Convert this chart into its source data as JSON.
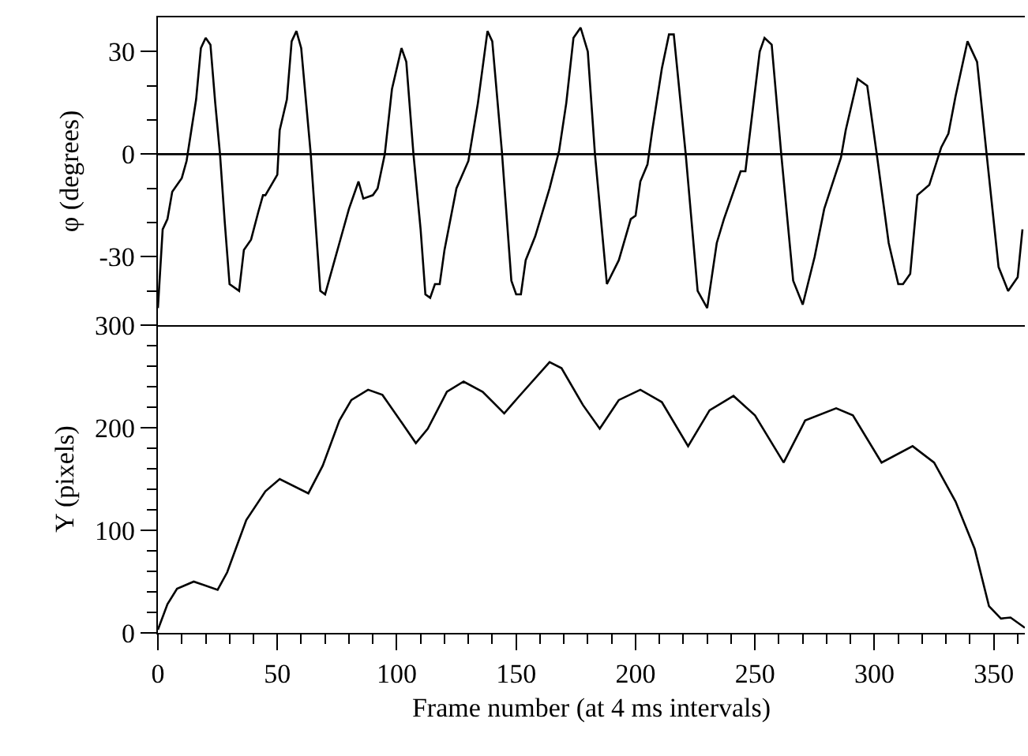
{
  "chart_data": [
    {
      "type": "line",
      "ylabel": "φ (degrees)",
      "tick_labels": "y",
      "grid": false,
      "marker": "none",
      "line_style": "solid",
      "xlim": [
        0,
        363
      ],
      "ylim": [
        -50,
        40
      ],
      "yticks": [
        {
          "value": -40,
          "label": null
        },
        -30,
        {
          "value": -20,
          "label": null
        },
        {
          "value": -10,
          "label": null
        },
        0,
        {
          "value": 10,
          "label": null
        },
        {
          "value": 20,
          "label": null
        },
        30
      ],
      "ref_lines": [
        {
          "axis": "y",
          "value": 0,
          "label": null,
          "color": "#000000"
        }
      ],
      "series": [
        {
          "color": "#000000",
          "x": [
            0,
            2,
            4,
            6,
            10,
            12,
            14,
            16,
            18,
            20,
            22,
            24,
            26,
            28,
            30,
            34,
            36,
            39,
            42,
            44,
            45,
            50,
            51,
            54,
            56,
            58,
            60,
            64,
            67,
            68,
            70,
            74,
            76,
            80,
            81,
            84,
            86,
            90,
            92,
            95,
            98,
            102,
            104,
            107,
            110,
            112,
            114,
            116,
            118,
            120,
            125,
            130,
            134,
            138,
            140,
            144,
            148,
            150,
            152,
            154,
            158,
            164,
            168,
            171,
            174,
            177,
            180,
            183,
            188,
            193,
            198,
            200,
            202,
            205,
            207,
            211,
            214,
            216,
            221,
            226,
            230,
            234,
            237,
            244,
            246,
            247,
            252,
            254,
            257,
            261,
            266,
            270,
            275,
            279,
            286,
            288,
            293,
            297,
            301,
            306,
            310,
            312,
            315,
            318,
            323,
            328,
            331,
            334,
            339,
            343,
            347,
            352,
            356,
            360,
            362
          ],
          "values": [
            -45,
            -22,
            -19,
            -11,
            -7,
            -2,
            7,
            16,
            31,
            34,
            32,
            15,
            0,
            -20,
            -38,
            -40,
            -28,
            -25,
            -17,
            -12,
            -12,
            -6,
            7,
            16,
            33,
            36,
            31,
            0,
            -30,
            -40,
            -41,
            -31,
            -26,
            -16,
            -14,
            -8,
            -13,
            -12,
            -10,
            0,
            19,
            31,
            27,
            0,
            -22,
            -41,
            -42,
            -38,
            -38,
            -28,
            -10,
            -2,
            15,
            36,
            33,
            1,
            -37,
            -41,
            -41,
            -31,
            -24,
            -10,
            1,
            15,
            34,
            37,
            30,
            0,
            -38,
            -31,
            -19,
            -18,
            -8,
            -3,
            7,
            25,
            35,
            35,
            0,
            -40,
            -45,
            -26,
            -19,
            -5,
            -5,
            1,
            30,
            34,
            32,
            0,
            -37,
            -44,
            -30,
            -16,
            -1,
            7,
            22,
            20,
            0,
            -26,
            -38,
            -38,
            -35,
            -12,
            -9,
            2,
            6,
            17,
            33,
            27,
            0,
            -33,
            -40,
            -36,
            -22
          ]
        }
      ]
    },
    {
      "type": "line",
      "xlabel": "Frame number (at 4 ms intervals)",
      "ylabel": "Y (pixels)",
      "grid": false,
      "marker": "none",
      "line_style": "solid",
      "xlim": [
        0,
        363
      ],
      "xticks": [
        0,
        {
          "value": 10,
          "label": null
        },
        {
          "value": 20,
          "label": null
        },
        {
          "value": 30,
          "label": null
        },
        {
          "value": 40,
          "label": null
        },
        50,
        {
          "value": 60,
          "label": null
        },
        {
          "value": 70,
          "label": null
        },
        {
          "value": 80,
          "label": null
        },
        {
          "value": 90,
          "label": null
        },
        100,
        {
          "value": 110,
          "label": null
        },
        {
          "value": 120,
          "label": null
        },
        {
          "value": 130,
          "label": null
        },
        {
          "value": 140,
          "label": null
        },
        150,
        {
          "value": 160,
          "label": null
        },
        {
          "value": 170,
          "label": null
        },
        {
          "value": 180,
          "label": null
        },
        {
          "value": 190,
          "label": null
        },
        200,
        {
          "value": 210,
          "label": null
        },
        {
          "value": 220,
          "label": null
        },
        {
          "value": 230,
          "label": null
        },
        {
          "value": 240,
          "label": null
        },
        250,
        {
          "value": 260,
          "label": null
        },
        {
          "value": 270,
          "label": null
        },
        {
          "value": 280,
          "label": null
        },
        {
          "value": 290,
          "label": null
        },
        300,
        {
          "value": 310,
          "label": null
        },
        {
          "value": 320,
          "label": null
        },
        {
          "value": 330,
          "label": null
        },
        {
          "value": 340,
          "label": null
        },
        350,
        {
          "value": 360,
          "label": null
        }
      ],
      "ylim": [
        0,
        300
      ],
      "yticks": [
        0,
        {
          "value": 20,
          "label": null
        },
        {
          "value": 40,
          "label": null
        },
        {
          "value": 60,
          "label": null
        },
        {
          "value": 80,
          "label": null
        },
        100,
        {
          "value": 120,
          "label": null
        },
        {
          "value": 140,
          "label": null
        },
        {
          "value": 160,
          "label": null
        },
        {
          "value": 180,
          "label": null
        },
        200,
        {
          "value": 220,
          "label": null
        },
        {
          "value": 240,
          "label": null
        },
        {
          "value": 260,
          "label": null
        },
        {
          "value": 280,
          "label": null
        },
        300
      ],
      "series": [
        {
          "color": "#000000",
          "x": [
            0,
            4,
            8,
            15,
            25,
            29,
            37,
            45,
            51,
            63,
            69,
            76,
            81,
            88,
            94,
            103,
            108,
            113,
            121,
            128,
            136,
            145,
            151,
            164,
            169,
            178,
            185,
            193,
            202,
            211,
            222,
            231,
            241,
            250,
            262,
            271,
            284,
            291,
            303,
            316,
            325,
            334,
            342,
            348,
            353,
            357,
            363
          ],
          "values": [
            3,
            28,
            43,
            50,
            42,
            59,
            110,
            138,
            150,
            136,
            163,
            207,
            227,
            237,
            232,
            202,
            185,
            199,
            235,
            245,
            235,
            214,
            230,
            264,
            258,
            222,
            199,
            227,
            237,
            225,
            182,
            217,
            231,
            212,
            166,
            207,
            219,
            212,
            166,
            182,
            166,
            128,
            82,
            26,
            14,
            15,
            5
          ]
        }
      ]
    }
  ]
}
